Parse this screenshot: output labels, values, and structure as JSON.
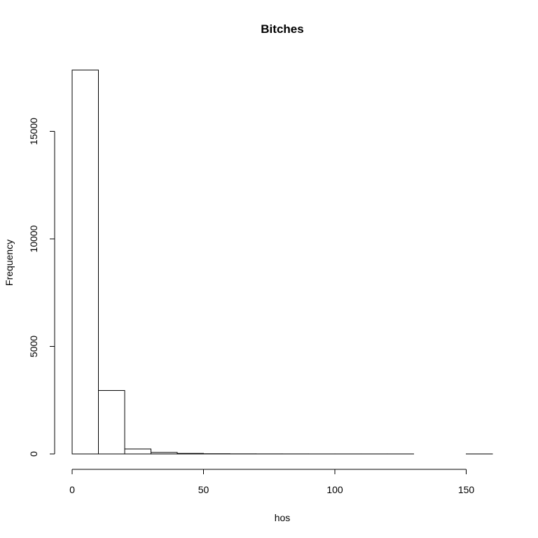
{
  "chart_data": {
    "type": "bar",
    "title": "Bitches",
    "xlabel": "hos",
    "ylabel": "Frequency",
    "bin_edges": [
      0,
      10,
      20,
      30,
      40,
      50,
      60,
      70,
      80,
      90,
      100,
      110,
      120,
      130,
      140,
      150,
      160
    ],
    "values": [
      17850,
      2950,
      230,
      70,
      25,
      10,
      5,
      3,
      2,
      1,
      1,
      1,
      1,
      0,
      0,
      1
    ],
    "xlim": [
      0,
      160
    ],
    "ylim": [
      0,
      17850
    ],
    "x_ticks": [
      0,
      50,
      100,
      150
    ],
    "y_ticks": [
      0,
      5000,
      10000,
      15000
    ],
    "grid": false
  }
}
